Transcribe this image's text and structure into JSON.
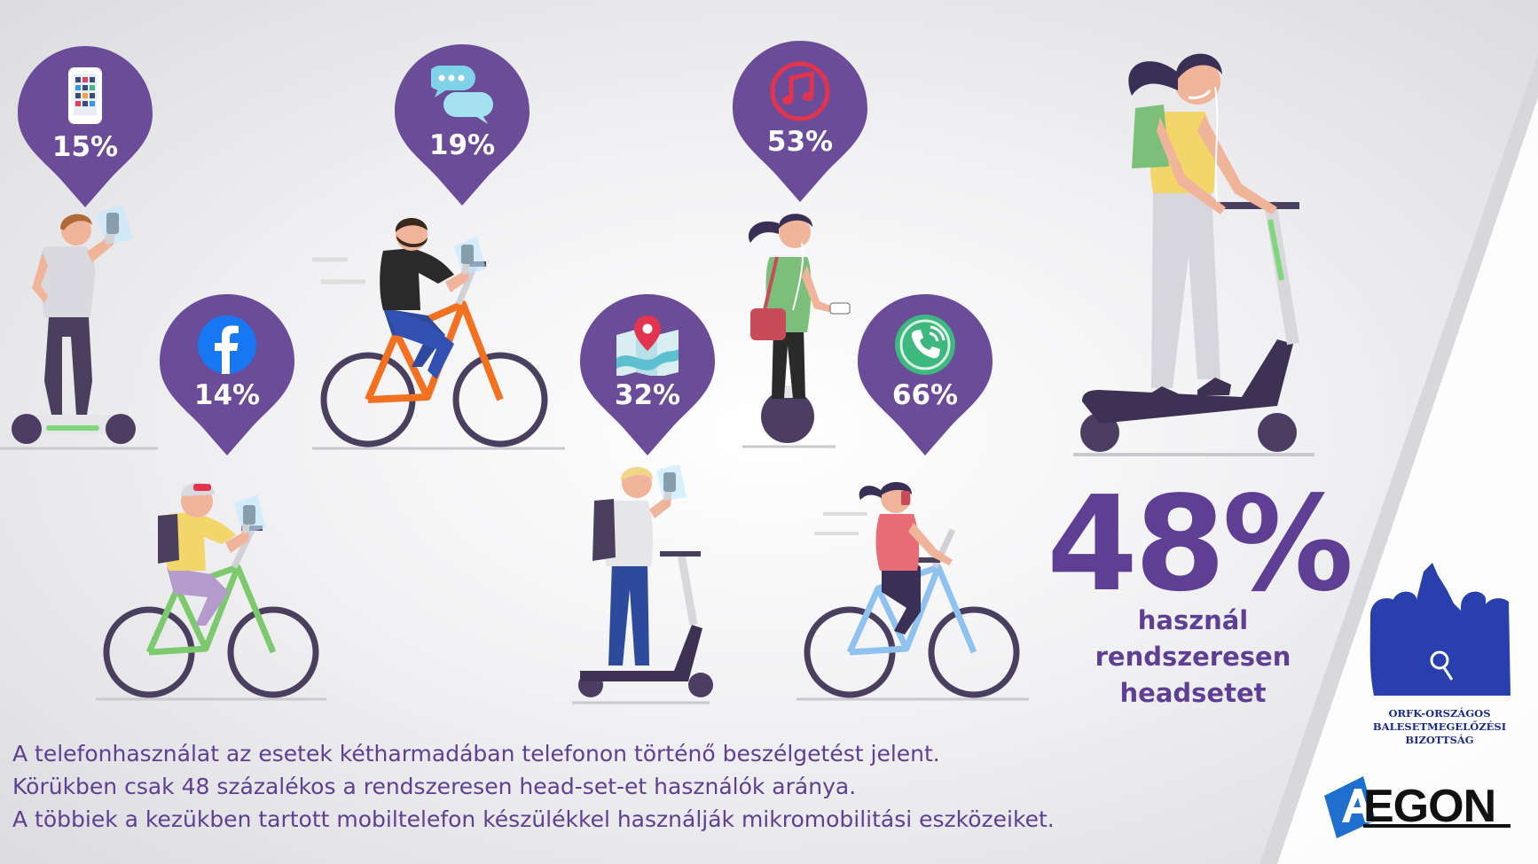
{
  "stats": [
    {
      "id": "apps",
      "icon": "smartphone-apps-icon",
      "value": "15%"
    },
    {
      "id": "messages",
      "icon": "chat-bubbles-icon",
      "value": "19%"
    },
    {
      "id": "music",
      "icon": "music-note-icon",
      "value": "53%"
    },
    {
      "id": "facebook",
      "icon": "facebook-icon",
      "value": "14%"
    },
    {
      "id": "maps",
      "icon": "map-pin-icon",
      "value": "32%"
    },
    {
      "id": "calls",
      "icon": "phone-call-icon",
      "value": "66%"
    }
  ],
  "headline": {
    "value": "48%",
    "lines": [
      "használ",
      "rendszeresen",
      "headsetet"
    ]
  },
  "caption": [
    "A telefonhasználat az esetek kétharmadában telefonon történő beszélgetést jelent.",
    "Körükben csak 48 százalékos a rendszeresen head-set-et használók aránya.",
    "A többiek a kezükben tartott mobiltelefon készülékkel használják mikromobilitási eszközeiket."
  ],
  "logos": {
    "orfk": [
      "ORFK-ORSZÁGOS",
      "BALESETMEGELŐZÉSI",
      "BIZOTTSÁG"
    ],
    "aegon": "EGON"
  },
  "colors": {
    "accent": "#6a4c98",
    "text": "#5e3f93",
    "orfk": "#1b2a8a",
    "aegon_blue": "#1f6fcf"
  }
}
